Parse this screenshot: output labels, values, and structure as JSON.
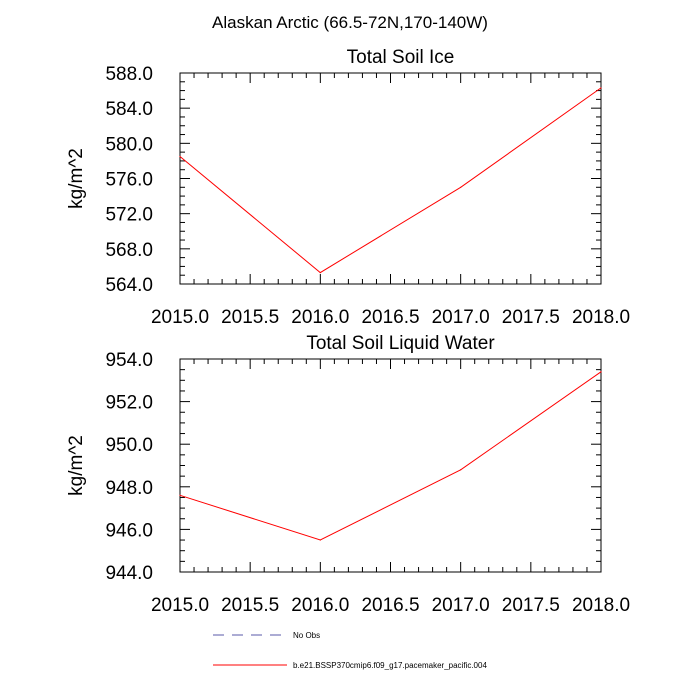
{
  "figure_title": "Alaskan Arctic (66.5-72N,170-140W)",
  "chart_data": [
    {
      "type": "line",
      "title": "Total Soil Ice",
      "xlabel": "",
      "ylabel": "kg/m^2",
      "xlim": [
        2015.0,
        2018.0
      ],
      "ylim": [
        564.0,
        588.0
      ],
      "x_ticks": [
        "2015.0",
        "2015.5",
        "2016.0",
        "2016.5",
        "2017.0",
        "2017.5",
        "2018.0"
      ],
      "y_ticks": [
        "564.0",
        "568.0",
        "572.0",
        "576.0",
        "580.0",
        "584.0",
        "588.0"
      ],
      "grid": false,
      "series": [
        {
          "name": "b.e21.BSSP370cmip6.f09_g17.pacemaker_pacific.004",
          "color": "#ff0000",
          "x": [
            2015.0,
            2016.0,
            2017.0,
            2018.0
          ],
          "y": [
            578.5,
            565.3,
            575.0,
            586.3
          ]
        }
      ]
    },
    {
      "type": "line",
      "title": "Total Soil Liquid Water",
      "xlabel": "",
      "ylabel": "kg/m^2",
      "xlim": [
        2015.0,
        2018.0
      ],
      "ylim": [
        944.0,
        954.0
      ],
      "x_ticks": [
        "2015.0",
        "2015.5",
        "2016.0",
        "2016.5",
        "2017.0",
        "2017.5",
        "2018.0"
      ],
      "y_ticks": [
        "944.0",
        "946.0",
        "948.0",
        "950.0",
        "952.0",
        "954.0"
      ],
      "grid": false,
      "series": [
        {
          "name": "b.e21.BSSP370cmip6.f09_g17.pacemaker_pacific.004",
          "color": "#ff0000",
          "x": [
            2015.0,
            2016.0,
            2017.0,
            2018.0
          ],
          "y": [
            947.6,
            945.5,
            948.8,
            953.4
          ]
        }
      ]
    }
  ],
  "legend": {
    "placement": "bottom",
    "entries": [
      {
        "label": "No Obs",
        "color": "#5a5aa8",
        "style": "dashed"
      },
      {
        "label": "b.e21.BSSP370cmip6.f09_g17.pacemaker_pacific.004",
        "color": "#ff0000",
        "style": "solid"
      }
    ]
  }
}
